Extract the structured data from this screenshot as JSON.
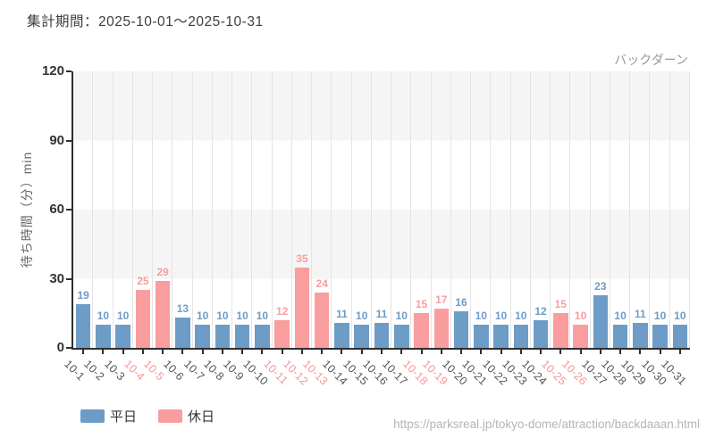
{
  "header": {
    "title": "集計期間：2025-10-01～2025-10-31"
  },
  "chart_data": {
    "type": "bar",
    "title": "集計期間：2025-10-01～2025-10-31",
    "annotation": "バックダーン",
    "xlabel": "",
    "ylabel": "待ち時間（分）min",
    "ylim": [
      0,
      120
    ],
    "yticks": [
      0,
      30,
      60,
      90,
      120
    ],
    "grid": "vertical-lines-with-horizontal-bands",
    "legend_position": "bottom-left",
    "categories": [
      "10-1",
      "10-2",
      "10-3",
      "10-4",
      "10-5",
      "10-6",
      "10-7",
      "10-8",
      "10-9",
      "10-10",
      "10-11",
      "10-12",
      "10-13",
      "10-14",
      "10-15",
      "10-16",
      "10-17",
      "10-18",
      "10-19",
      "10-20",
      "10-21",
      "10-22",
      "10-23",
      "10-24",
      "10-25",
      "10-26",
      "10-27",
      "10-28",
      "10-29",
      "10-30",
      "10-31"
    ],
    "values": [
      19,
      10,
      10,
      25,
      29,
      13,
      10,
      10,
      10,
      10,
      12,
      35,
      24,
      11,
      10,
      11,
      10,
      15,
      17,
      16,
      10,
      10,
      10,
      12,
      15,
      10,
      23,
      10,
      11,
      10,
      10
    ],
    "day_type": [
      "weekday",
      "weekday",
      "weekday",
      "holiday",
      "holiday",
      "weekday",
      "weekday",
      "weekday",
      "weekday",
      "weekday",
      "holiday",
      "holiday",
      "holiday",
      "weekday",
      "weekday",
      "weekday",
      "weekday",
      "holiday",
      "holiday",
      "weekday",
      "weekday",
      "weekday",
      "weekday",
      "weekday",
      "holiday",
      "holiday",
      "weekday",
      "weekday",
      "weekday",
      "weekday",
      "weekday"
    ],
    "legend": [
      {
        "key": "weekday",
        "label": "平日",
        "color": "#6d9cc6"
      },
      {
        "key": "holiday",
        "label": "休日",
        "color": "#f99d9f"
      }
    ],
    "xlabel_colors": {
      "weekday": "#555555",
      "holiday": "#f89598"
    },
    "band_color": "#f5f5f6",
    "gridline_color": "#e4e4e4",
    "axis_color": "#2f2f2f"
  },
  "footer": {
    "url": "https://parksreal.jp/tokyo-dome/attraction/backdaaan.html"
  }
}
